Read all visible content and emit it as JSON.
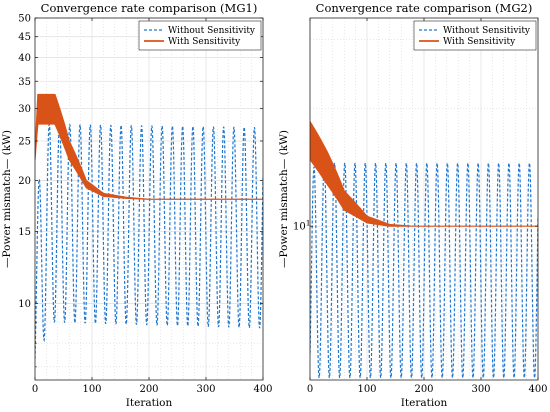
{
  "figure": {
    "ylabel_shared": "—Power mismatch— (kW)"
  },
  "chart_data": [
    {
      "type": "line",
      "title": "Convergence rate comparison (MG1)",
      "xlabel": "Iteration",
      "ylabel": "—Power mismatch— (kW)",
      "xlim": [
        0,
        400
      ],
      "ylim": [
        6.5,
        50
      ],
      "yscale": "log",
      "grid": true,
      "legend_position": "top-right",
      "xticks": [
        0,
        100,
        200,
        300,
        400
      ],
      "yticks": [
        10,
        15,
        20,
        25,
        30,
        35,
        40,
        45,
        50
      ],
      "minor_yticks": [
        7,
        8,
        9
      ],
      "series": [
        {
          "name": "Without Sensitivity",
          "style": "dashed",
          "color": "#1f77d0",
          "oscillation": {
            "period": 18,
            "upper_envelope": [
              [
                0,
                16
              ],
              [
                20,
                27.5
              ],
              [
                400,
                27
              ]
            ],
            "lower_envelope": [
              [
                0,
                6.6
              ],
              [
                25,
                9
              ],
              [
                400,
                8.7
              ]
            ]
          }
        },
        {
          "name": "With Sensitivity",
          "style": "solid",
          "color": "#d95319",
          "band": {
            "upper": [
              [
                0,
                22.5
              ],
              [
                5,
                32.5
              ],
              [
                35,
                32.5
              ],
              [
                60,
                25
              ],
              [
                90,
                20
              ],
              [
                120,
                18.6
              ],
              [
                160,
                18.2
              ],
              [
                200,
                18.0
              ],
              [
                400,
                18.0
              ]
            ],
            "lower": [
              [
                0,
                22.5
              ],
              [
                5,
                27.5
              ],
              [
                35,
                27.5
              ],
              [
                60,
                22.5
              ],
              [
                90,
                19.2
              ],
              [
                120,
                18.3
              ],
              [
                160,
                18.1
              ],
              [
                200,
                18.0
              ],
              [
                400,
                18.0
              ]
            ]
          }
        }
      ]
    },
    {
      "type": "line",
      "title": "Convergence rate comparison (MG2)",
      "xlabel": "Iteration",
      "ylabel": "—Power mismatch— (kW)",
      "xlim": [
        0,
        400
      ],
      "ylim": [
        4.05,
        34
      ],
      "yscale": "log",
      "grid": true,
      "legend_position": "top-right",
      "xticks": [
        0,
        100,
        200,
        300,
        400
      ],
      "yticks": [
        10
      ],
      "ytick_labels": [
        "10^1"
      ],
      "series": [
        {
          "name": "Without Sensitivity",
          "style": "dashed",
          "color": "#1f77d0",
          "oscillation": {
            "period": 18,
            "upper_envelope": [
              [
                0,
                14
              ],
              [
                20,
                14.5
              ],
              [
                400,
                14.5
              ]
            ],
            "lower_envelope": [
              [
                0,
                4.1
              ],
              [
                400,
                4.1
              ]
            ]
          }
        },
        {
          "name": "With Sensitivity",
          "style": "solid",
          "color": "#d95319",
          "band": {
            "upper": [
              [
                0,
                18.5
              ],
              [
                30,
                15.5
              ],
              [
                60,
                12.3
              ],
              [
                100,
                10.6
              ],
              [
                140,
                10.1
              ],
              [
                180,
                10.0
              ],
              [
                400,
                10.0
              ]
            ],
            "lower": [
              [
                0,
                14.8
              ],
              [
                30,
                12.8
              ],
              [
                60,
                11.0
              ],
              [
                100,
                10.2
              ],
              [
                140,
                10.0
              ],
              [
                180,
                10.0
              ],
              [
                400,
                10.0
              ]
            ]
          }
        }
      ]
    }
  ]
}
